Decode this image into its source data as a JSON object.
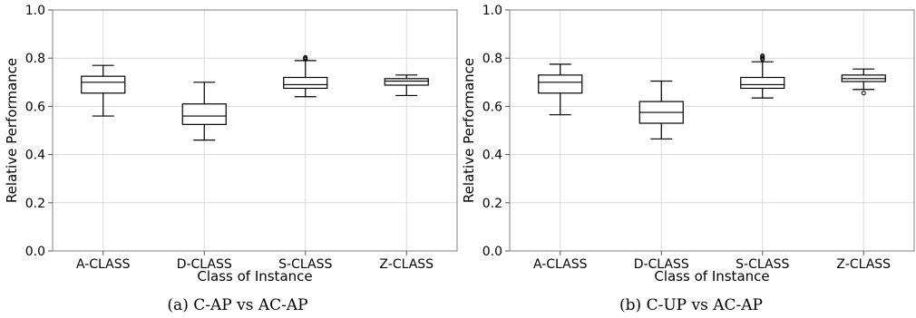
{
  "chart_data": [
    {
      "type": "box",
      "caption": "(a) C-AP vs AC-AP",
      "xlabel": "Class of Instance",
      "ylabel": "Relative Performance",
      "ylim": [
        0.0,
        1.0
      ],
      "yticks": [
        "0.0",
        "0.2",
        "0.4",
        "0.6",
        "0.8",
        "1.0"
      ],
      "grid": true,
      "categories": [
        "A-CLASS",
        "D-CLASS",
        "S-CLASS",
        "Z-CLASS"
      ],
      "boxes": [
        {
          "whisker_low": 0.56,
          "q1": 0.655,
          "median": 0.7,
          "q3": 0.725,
          "whisker_high": 0.77,
          "outliers": []
        },
        {
          "whisker_low": 0.46,
          "q1": 0.525,
          "median": 0.56,
          "q3": 0.61,
          "whisker_high": 0.7,
          "outliers": []
        },
        {
          "whisker_low": 0.64,
          "q1": 0.675,
          "median": 0.69,
          "q3": 0.72,
          "whisker_high": 0.79,
          "outliers": [
            0.795,
            0.8,
            0.803
          ]
        },
        {
          "whisker_low": 0.645,
          "q1": 0.688,
          "median": 0.705,
          "q3": 0.715,
          "whisker_high": 0.73,
          "outliers": []
        }
      ]
    },
    {
      "type": "box",
      "caption": "(b) C-UP vs AC-AP",
      "xlabel": "Class of Instance",
      "ylabel": "Relative Performance",
      "ylim": [
        0.0,
        1.0
      ],
      "yticks": [
        "0.0",
        "0.2",
        "0.4",
        "0.6",
        "0.8",
        "1.0"
      ],
      "grid": true,
      "categories": [
        "A-CLASS",
        "D-CLASS",
        "S-CLASS",
        "Z-CLASS"
      ],
      "boxes": [
        {
          "whisker_low": 0.565,
          "q1": 0.655,
          "median": 0.7,
          "q3": 0.73,
          "whisker_high": 0.775,
          "outliers": []
        },
        {
          "whisker_low": 0.465,
          "q1": 0.53,
          "median": 0.575,
          "q3": 0.62,
          "whisker_high": 0.705,
          "outliers": []
        },
        {
          "whisker_low": 0.635,
          "q1": 0.675,
          "median": 0.69,
          "q3": 0.72,
          "whisker_high": 0.785,
          "outliers": [
            0.795,
            0.8,
            0.805,
            0.81
          ]
        },
        {
          "whisker_low": 0.67,
          "q1": 0.703,
          "median": 0.715,
          "q3": 0.73,
          "whisker_high": 0.755,
          "outliers": [
            0.655
          ]
        }
      ]
    }
  ]
}
